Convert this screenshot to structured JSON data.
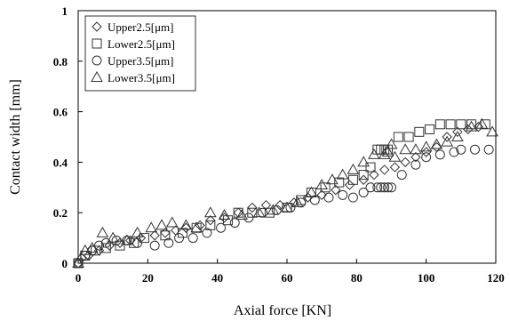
{
  "chart_data": {
    "type": "scatter",
    "title": "",
    "xlabel": "Axial force [KN]",
    "ylabel": "Contact width [mm]",
    "xlim": [
      0,
      120
    ],
    "ylim": [
      0,
      1
    ],
    "xticks": [
      0,
      20,
      40,
      60,
      80,
      100,
      120
    ],
    "yticks": [
      0,
      0.2,
      0.4,
      0.6,
      0.8,
      1
    ],
    "ytick_labels": [
      "0",
      "0.2",
      "0.4",
      "0.6",
      "0.8",
      "1"
    ],
    "grid": false,
    "legend_position": "top-left",
    "series": [
      {
        "name": "Upper2.5[μm]",
        "marker": "diamond",
        "points": [
          [
            0,
            0
          ],
          [
            1,
            0.02
          ],
          [
            3,
            0.03
          ],
          [
            6,
            0.05
          ],
          [
            9,
            0.07
          ],
          [
            12,
            0.08
          ],
          [
            15,
            0.09
          ],
          [
            18,
            0.1
          ],
          [
            22,
            0.11
          ],
          [
            25,
            0.12
          ],
          [
            28,
            0.13
          ],
          [
            31,
            0.14
          ],
          [
            35,
            0.15
          ],
          [
            38,
            0.17
          ],
          [
            42,
            0.18
          ],
          [
            46,
            0.2
          ],
          [
            50,
            0.22
          ],
          [
            54,
            0.23
          ],
          [
            58,
            0.23
          ],
          [
            62,
            0.24
          ],
          [
            66,
            0.26
          ],
          [
            70,
            0.27
          ],
          [
            74,
            0.29
          ],
          [
            78,
            0.31
          ],
          [
            82,
            0.33
          ],
          [
            85,
            0.35
          ],
          [
            88,
            0.37
          ],
          [
            91,
            0.38
          ],
          [
            94,
            0.4
          ],
          [
            97,
            0.42
          ],
          [
            100,
            0.44
          ],
          [
            103,
            0.46
          ],
          [
            106,
            0.5
          ],
          [
            109,
            0.52
          ],
          [
            112,
            0.53
          ],
          [
            115,
            0.54
          ]
        ]
      },
      {
        "name": "Lower2.5[μm]",
        "marker": "square",
        "points": [
          [
            0,
            0
          ],
          [
            2,
            0.03
          ],
          [
            5,
            0.05
          ],
          [
            8,
            0.06
          ],
          [
            12,
            0.07
          ],
          [
            16,
            0.08
          ],
          [
            19,
            0.1
          ],
          [
            25,
            0.11
          ],
          [
            30,
            0.12
          ],
          [
            34,
            0.14
          ],
          [
            38,
            0.15
          ],
          [
            43,
            0.17
          ],
          [
            46,
            0.2
          ],
          [
            50,
            0.2
          ],
          [
            55,
            0.2
          ],
          [
            60,
            0.22
          ],
          [
            64,
            0.25
          ],
          [
            67,
            0.28
          ],
          [
            71,
            0.3
          ],
          [
            75,
            0.32
          ],
          [
            79,
            0.33
          ],
          [
            82,
            0.35
          ],
          [
            84,
            0.38
          ],
          [
            86,
            0.45
          ],
          [
            87,
            0.45
          ],
          [
            88,
            0.45
          ],
          [
            89,
            0.45
          ],
          [
            92,
            0.5
          ],
          [
            95,
            0.5
          ],
          [
            98,
            0.52
          ],
          [
            101,
            0.53
          ],
          [
            104,
            0.55
          ],
          [
            107,
            0.55
          ],
          [
            110,
            0.55
          ],
          [
            113,
            0.55
          ],
          [
            117,
            0.55
          ]
        ]
      },
      {
        "name": "Upper3.5[μm]",
        "marker": "circle",
        "points": [
          [
            0,
            0
          ],
          [
            2,
            0.03
          ],
          [
            4,
            0.05
          ],
          [
            6,
            0.07
          ],
          [
            8,
            0.08
          ],
          [
            11,
            0.09
          ],
          [
            14,
            0.09
          ],
          [
            17,
            0.08
          ],
          [
            22,
            0.07
          ],
          [
            26,
            0.08
          ],
          [
            29,
            0.1
          ],
          [
            33,
            0.1
          ],
          [
            37,
            0.12
          ],
          [
            41,
            0.14
          ],
          [
            45,
            0.16
          ],
          [
            49,
            0.18
          ],
          [
            53,
            0.2
          ],
          [
            57,
            0.21
          ],
          [
            61,
            0.22
          ],
          [
            64,
            0.24
          ],
          [
            68,
            0.25
          ],
          [
            72,
            0.26
          ],
          [
            76,
            0.27
          ],
          [
            79,
            0.26
          ],
          [
            82,
            0.28
          ],
          [
            84,
            0.3
          ],
          [
            86,
            0.3
          ],
          [
            87,
            0.3
          ],
          [
            88,
            0.3
          ],
          [
            89,
            0.3
          ],
          [
            90,
            0.3
          ],
          [
            93,
            0.35
          ],
          [
            97,
            0.39
          ],
          [
            100,
            0.42
          ],
          [
            104,
            0.43
          ],
          [
            108,
            0.44
          ],
          [
            110,
            0.45
          ],
          [
            114,
            0.45
          ],
          [
            118,
            0.45
          ]
        ]
      },
      {
        "name": "Lower3.5[μm]",
        "marker": "triangle",
        "points": [
          [
            0,
            0
          ],
          [
            2,
            0.05
          ],
          [
            4,
            0.06
          ],
          [
            7,
            0.12
          ],
          [
            10,
            0.1
          ],
          [
            14,
            0.09
          ],
          [
            17,
            0.12
          ],
          [
            21,
            0.14
          ],
          [
            24,
            0.15
          ],
          [
            27,
            0.16
          ],
          [
            31,
            0.15
          ],
          [
            34,
            0.14
          ],
          [
            38,
            0.2
          ],
          [
            42,
            0.19
          ],
          [
            47,
            0.19
          ],
          [
            52,
            0.2
          ],
          [
            56,
            0.21
          ],
          [
            60,
            0.22
          ],
          [
            63,
            0.24
          ],
          [
            67,
            0.28
          ],
          [
            70,
            0.31
          ],
          [
            73,
            0.33
          ],
          [
            76,
            0.35
          ],
          [
            79,
            0.37
          ],
          [
            82,
            0.4
          ],
          [
            85,
            0.43
          ],
          [
            88,
            0.43
          ],
          [
            89,
            0.44
          ],
          [
            90,
            0.47
          ],
          [
            91,
            0.42
          ],
          [
            94,
            0.45
          ],
          [
            97,
            0.45
          ],
          [
            100,
            0.46
          ],
          [
            103,
            0.47
          ],
          [
            106,
            0.48
          ],
          [
            109,
            0.5
          ],
          [
            113,
            0.54
          ],
          [
            116,
            0.55
          ],
          [
            119,
            0.52
          ]
        ]
      }
    ]
  }
}
